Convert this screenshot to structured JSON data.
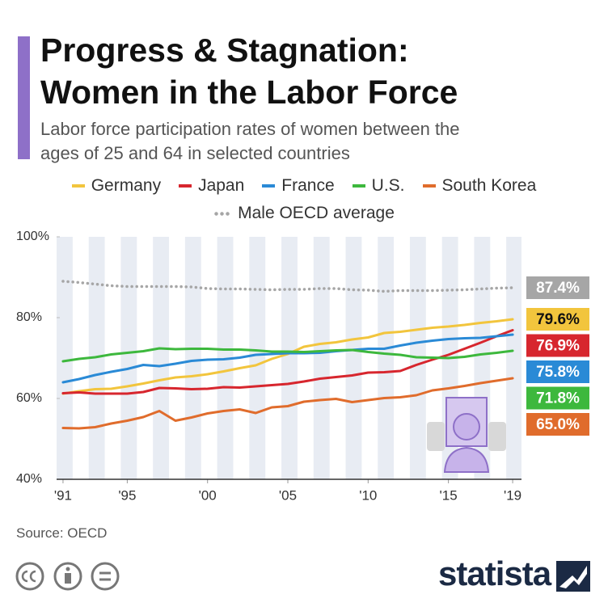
{
  "chart_data": {
    "type": "line",
    "title": "Progress & Stagnation: Women in the Labor Force",
    "subtitle": "Labor force participation rates of women between the ages of 25 and 64 in selected countries",
    "source": "Source: OECD",
    "brand": "statista",
    "x": [
      1991,
      1992,
      1993,
      1994,
      1995,
      1996,
      1997,
      1998,
      1999,
      2000,
      2001,
      2002,
      2003,
      2004,
      2005,
      2006,
      2007,
      2008,
      2009,
      2010,
      2011,
      2012,
      2013,
      2014,
      2015,
      2016,
      2017,
      2018,
      2019
    ],
    "xlim": [
      1990.6,
      2019.55
    ],
    "xticks": [
      {
        "value": 1991,
        "label": "'91"
      },
      {
        "value": 1995,
        "label": "'95"
      },
      {
        "value": 2000,
        "label": "'00"
      },
      {
        "value": 2005,
        "label": "'05"
      },
      {
        "value": 2010,
        "label": "'10"
      },
      {
        "value": 2015,
        "label": "'15"
      },
      {
        "value": 2019,
        "label": "'19"
      }
    ],
    "ylim": [
      40,
      100
    ],
    "yticks": [
      {
        "value": 40,
        "label": "40%"
      },
      {
        "value": 60,
        "label": "60%"
      },
      {
        "value": 80,
        "label": "80%"
      },
      {
        "value": 100,
        "label": "100%"
      }
    ],
    "series": [
      {
        "name": "Germany",
        "color": "#f2c53d",
        "label_text_color": "#111",
        "values": [
          61.2,
          61.8,
          62.3,
          62.4,
          63.0,
          63.7,
          64.5,
          65.2,
          65.5,
          66.0,
          66.7,
          67.5,
          68.2,
          69.8,
          71.0,
          72.8,
          73.5,
          73.9,
          74.6,
          75.1,
          76.2,
          76.5,
          77.0,
          77.5,
          77.8,
          78.2,
          78.7,
          79.1,
          79.6
        ],
        "value_labels": [
          null,
          null,
          null,
          null,
          null,
          null,
          null,
          null,
          null,
          null,
          null,
          null,
          null,
          null,
          null,
          null,
          null,
          null,
          null,
          null,
          null,
          null,
          null,
          null,
          null,
          null,
          null,
          null,
          "79.6%"
        ]
      },
      {
        "name": "Japan",
        "color": "#d7262e",
        "label_text_color": "#fff",
        "values": [
          61.3,
          61.5,
          61.2,
          61.2,
          61.2,
          61.6,
          62.6,
          62.5,
          62.3,
          62.4,
          62.8,
          62.7,
          63.0,
          63.3,
          63.6,
          64.2,
          64.9,
          65.3,
          65.7,
          66.4,
          66.5,
          66.8,
          68.3,
          69.6,
          70.8,
          72.3,
          73.8,
          75.4,
          76.9
        ],
        "value_labels": [
          null,
          null,
          null,
          null,
          null,
          null,
          null,
          null,
          null,
          null,
          null,
          null,
          null,
          null,
          null,
          null,
          null,
          null,
          null,
          null,
          null,
          null,
          null,
          null,
          null,
          null,
          null,
          null,
          "76.9%"
        ]
      },
      {
        "name": "France",
        "color": "#2a8ad6",
        "label_text_color": "#fff",
        "values": [
          64.0,
          64.8,
          65.8,
          66.6,
          67.3,
          68.3,
          68.0,
          68.6,
          69.3,
          69.6,
          69.7,
          70.1,
          70.8,
          71.0,
          71.2,
          71.2,
          71.3,
          71.7,
          72.0,
          72.3,
          72.3,
          73.1,
          73.8,
          74.3,
          74.7,
          74.9,
          75.0,
          75.4,
          75.8
        ],
        "value_labels": [
          null,
          null,
          null,
          null,
          null,
          null,
          null,
          null,
          null,
          null,
          null,
          null,
          null,
          null,
          null,
          null,
          null,
          null,
          null,
          null,
          null,
          null,
          null,
          null,
          null,
          null,
          null,
          null,
          "75.8%"
        ]
      },
      {
        "name": "U.S.",
        "color": "#3db83d",
        "label_text_color": "#fff",
        "values": [
          69.2,
          69.8,
          70.2,
          70.9,
          71.3,
          71.7,
          72.4,
          72.2,
          72.3,
          72.3,
          72.1,
          72.1,
          71.9,
          71.6,
          71.6,
          71.5,
          71.7,
          71.9,
          72.0,
          71.5,
          71.1,
          70.8,
          70.2,
          70.1,
          70.0,
          70.3,
          70.9,
          71.3,
          71.8
        ],
        "value_labels": [
          null,
          null,
          null,
          null,
          null,
          null,
          null,
          null,
          null,
          null,
          null,
          null,
          null,
          null,
          null,
          null,
          null,
          null,
          null,
          null,
          null,
          null,
          null,
          null,
          null,
          null,
          null,
          null,
          "71.8%"
        ]
      },
      {
        "name": "South Korea",
        "color": "#e06c2c",
        "label_text_color": "#fff",
        "values": [
          52.7,
          52.6,
          52.9,
          53.8,
          54.5,
          55.4,
          56.9,
          54.5,
          55.3,
          56.3,
          56.9,
          57.3,
          56.4,
          57.8,
          58.1,
          59.2,
          59.6,
          59.9,
          59.1,
          59.6,
          60.1,
          60.3,
          60.8,
          62.0,
          62.5,
          63.1,
          63.8,
          64.4,
          65.0
        ],
        "value_labels": [
          null,
          null,
          null,
          null,
          null,
          null,
          null,
          null,
          null,
          null,
          null,
          null,
          null,
          null,
          null,
          null,
          null,
          null,
          null,
          null,
          null,
          null,
          null,
          null,
          null,
          null,
          null,
          null,
          "65.0%"
        ]
      },
      {
        "name": "Male OECD average",
        "color": "#a6a6a6",
        "label_text_color": "#fff",
        "style": "dotted",
        "values": [
          89.0,
          88.7,
          88.3,
          87.9,
          87.7,
          87.7,
          87.7,
          87.7,
          87.6,
          87.2,
          87.1,
          87.1,
          87.0,
          86.9,
          87.0,
          87.0,
          87.2,
          87.2,
          86.9,
          86.8,
          86.5,
          86.7,
          86.7,
          86.7,
          86.8,
          86.9,
          87.1,
          87.3,
          87.4
        ],
        "value_labels": [
          null,
          null,
          null,
          null,
          null,
          null,
          null,
          null,
          null,
          null,
          null,
          null,
          null,
          null,
          null,
          null,
          null,
          null,
          null,
          null,
          null,
          null,
          null,
          null,
          null,
          null,
          null,
          null,
          "87.4%"
        ]
      }
    ]
  }
}
